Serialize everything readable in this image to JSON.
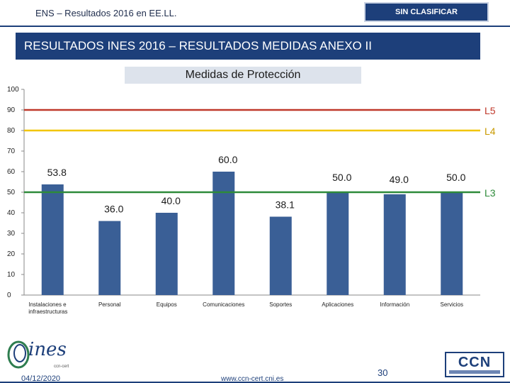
{
  "header": {
    "title": "ENS – Resultados 2016 en EE.LL.",
    "classification": "SIN CLASIFICAR"
  },
  "banner_title": "RESULTADOS INES 2016 – RESULTADOS MEDIDAS ANEXO II",
  "subtitle": "Medidas de Protección",
  "chart_data": {
    "type": "bar",
    "title": "Medidas de Protección",
    "categories": [
      "Instalaciones e infraestructuras",
      "Personal",
      "Equipos",
      "Comunicaciones",
      "Soportes",
      "Aplicaciones",
      "Información",
      "Servicios"
    ],
    "values": [
      53.8,
      36.0,
      40.0,
      60.0,
      38.1,
      50.0,
      49.0,
      50.0
    ],
    "value_labels": [
      "53.8",
      "36.0",
      "40.0",
      "60.0",
      "38.1",
      "50.0",
      "49.0",
      "50.0"
    ],
    "ylim": [
      0,
      100
    ],
    "yticks": [
      0,
      10,
      20,
      30,
      40,
      50,
      60,
      70,
      80,
      90,
      100
    ],
    "reference_lines": [
      {
        "label": "L5",
        "value": 90,
        "color": "#c0392b"
      },
      {
        "label": "L4",
        "value": 80,
        "color": "#f2c500"
      },
      {
        "label": "L3",
        "value": 50,
        "color": "#2e8b3a"
      }
    ],
    "bar_color": "#3a5f96"
  },
  "footer": {
    "date": "04/12/2020",
    "url": "www.ccn-cert.cni.es",
    "page_number": "30",
    "ines_logo_text": "ines",
    "ines_logo_sub": "ccn-cert",
    "ccn_logo_text": "CCN"
  }
}
